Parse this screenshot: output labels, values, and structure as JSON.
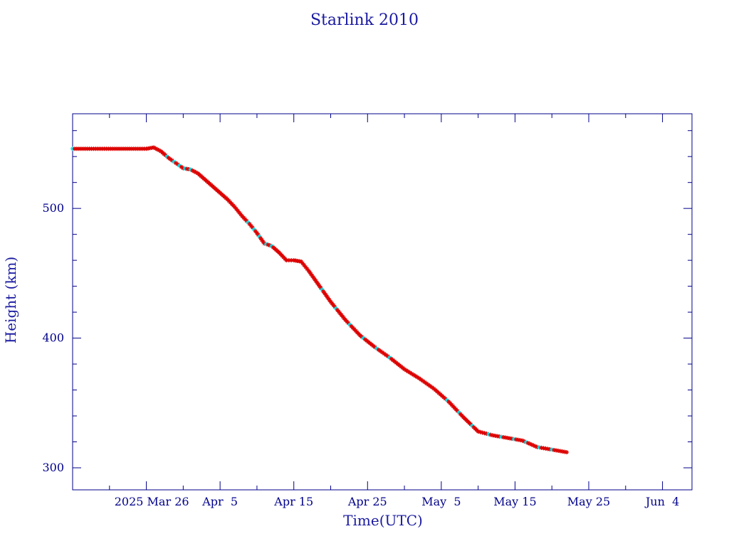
{
  "chart_data": {
    "type": "line",
    "title": "Starlink 2010",
    "xlabel": "Time(UTC)",
    "ylabel": "Height (km)",
    "xlim": [
      "2025-03-16",
      "2025-06-08"
    ],
    "ylim": [
      283,
      573
    ],
    "x_tick_labels": [
      {
        "date": "2025-03-26",
        "label": "2025 Mar 26"
      },
      {
        "date": "2025-04-05",
        "label": "Apr  5"
      },
      {
        "date": "2025-04-15",
        "label": "Apr 15"
      },
      {
        "date": "2025-04-25",
        "label": "Apr 25"
      },
      {
        "date": "2025-05-05",
        "label": "May  5"
      },
      {
        "date": "2025-05-15",
        "label": "May 15"
      },
      {
        "date": "2025-05-25",
        "label": "May 25"
      },
      {
        "date": "2025-06-04",
        "label": "Jun  4"
      }
    ],
    "y_ticks": [
      300,
      400,
      500
    ],
    "grid": false,
    "line_color": "#000000",
    "marker_colors": [
      "#dd0000",
      "#00e5ee"
    ],
    "series": [
      {
        "x": [
          "2025-03-16",
          "2025-03-18",
          "2025-03-20",
          "2025-03-22",
          "2025-03-24",
          "2025-03-26",
          "2025-03-27",
          "2025-03-28",
          "2025-03-29",
          "2025-03-30",
          "2025-03-31",
          "2025-04-01",
          "2025-04-02",
          "2025-04-03",
          "2025-04-04",
          "2025-04-05",
          "2025-04-06",
          "2025-04-07",
          "2025-04-08",
          "2025-04-09",
          "2025-04-10",
          "2025-04-11",
          "2025-04-12",
          "2025-04-13",
          "2025-04-14",
          "2025-04-15",
          "2025-04-16",
          "2025-04-17",
          "2025-04-18",
          "2025-04-20",
          "2025-04-22",
          "2025-04-24",
          "2025-04-26",
          "2025-04-28",
          "2025-04-30",
          "2025-05-02",
          "2025-05-04",
          "2025-05-06",
          "2025-05-08",
          "2025-05-10",
          "2025-05-12",
          "2025-05-14",
          "2025-05-16",
          "2025-05-18",
          "2025-05-20",
          "2025-05-22"
        ],
        "y": [
          546,
          546,
          546,
          546,
          546,
          546,
          547,
          544,
          539,
          535,
          531,
          530,
          527,
          522,
          517,
          512,
          507,
          501,
          494,
          488,
          481,
          473,
          471,
          466,
          460,
          460,
          459,
          452,
          444,
          428,
          414,
          402,
          393,
          385,
          376,
          369,
          361,
          351,
          339,
          328,
          325,
          323,
          321,
          316,
          314,
          312
        ]
      }
    ]
  }
}
